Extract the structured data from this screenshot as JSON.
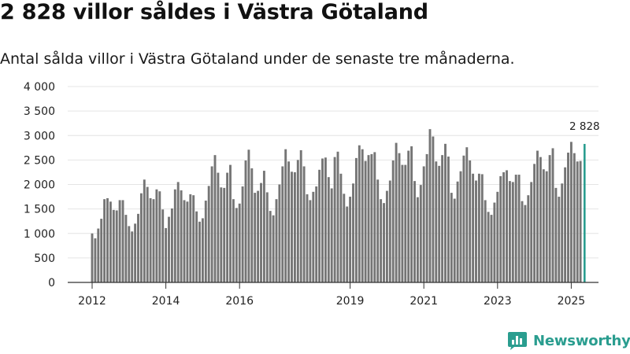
{
  "header": {
    "title": "2 828 villor såldes i Västra Götaland",
    "subtitle": "Antal sålda villor i Västra Götaland under de senaste tre månaderna."
  },
  "brand": {
    "name": "Newsworthy",
    "icon": "bar-chart-logo-icon",
    "color": "#2a9d8f"
  },
  "colors": {
    "bar": "#757575",
    "highlight": "#2a9d8f",
    "axis": "#333333"
  },
  "chart_data": {
    "type": "bar",
    "title": "2 828 villor såldes i Västra Götaland",
    "subtitle": "Antal sålda villor i Västra Götaland under de senaste tre månaderna.",
    "xlabel": "",
    "ylabel": "",
    "ylim": [
      0,
      4000
    ],
    "yticks": [
      0,
      500,
      1000,
      1500,
      2000,
      2500,
      3000,
      3500,
      4000
    ],
    "ytick_labels": [
      "0",
      "500",
      "1 000",
      "1 500",
      "2 000",
      "2 500",
      "3 000",
      "3 500",
      "4 000"
    ],
    "x_start": "2012-01",
    "xtick_labels": [
      {
        "label": "2012",
        "index": 0
      },
      {
        "label": "2014",
        "index": 24
      },
      {
        "label": "2016",
        "index": 48
      },
      {
        "label": "2019",
        "index": 84
      },
      {
        "label": "2021",
        "index": 108
      },
      {
        "label": "2023",
        "index": 132
      },
      {
        "label": "2025",
        "index": 156
      }
    ],
    "highlight": {
      "label": "2 828",
      "value": 2828
    },
    "values": [
      1000,
      900,
      1100,
      1300,
      1700,
      1720,
      1650,
      1480,
      1470,
      1680,
      1680,
      1380,
      1150,
      1040,
      1200,
      1400,
      1820,
      2100,
      1950,
      1720,
      1700,
      1900,
      1860,
      1490,
      1110,
      1340,
      1510,
      1900,
      2050,
      1880,
      1680,
      1650,
      1800,
      1780,
      1450,
      1240,
      1310,
      1670,
      1970,
      2370,
      2600,
      2240,
      1940,
      1930,
      2240,
      2400,
      1700,
      1520,
      1610,
      1960,
      2490,
      2710,
      2330,
      1830,
      1870,
      2030,
      2280,
      1840,
      1460,
      1370,
      1700,
      2000,
      2370,
      2720,
      2470,
      2260,
      2250,
      2500,
      2700,
      2370,
      1800,
      1680,
      1850,
      1960,
      2300,
      2530,
      2550,
      2150,
      1920,
      2560,
      2670,
      2220,
      1810,
      1550,
      1750,
      2020,
      2540,
      2800,
      2720,
      2480,
      2600,
      2620,
      2660,
      2100,
      1700,
      1620,
      1870,
      2080,
      2490,
      2850,
      2640,
      2400,
      2400,
      2690,
      2780,
      2070,
      1740,
      1990,
      2370,
      2620,
      3130,
      2980,
      2470,
      2380,
      2600,
      2830,
      2570,
      1830,
      1710,
      2060,
      2270,
      2590,
      2760,
      2490,
      2220,
      2080,
      2220,
      2210,
      1680,
      1440,
      1380,
      1630,
      1850,
      2170,
      2250,
      2290,
      2070,
      2050,
      2200,
      2200,
      1660,
      1580,
      1780,
      2050,
      2420,
      2690,
      2560,
      2310,
      2270,
      2600,
      2740,
      1930,
      1750,
      2020,
      2350,
      2650,
      2870,
      2640,
      2470,
      2480,
      2828
    ]
  }
}
